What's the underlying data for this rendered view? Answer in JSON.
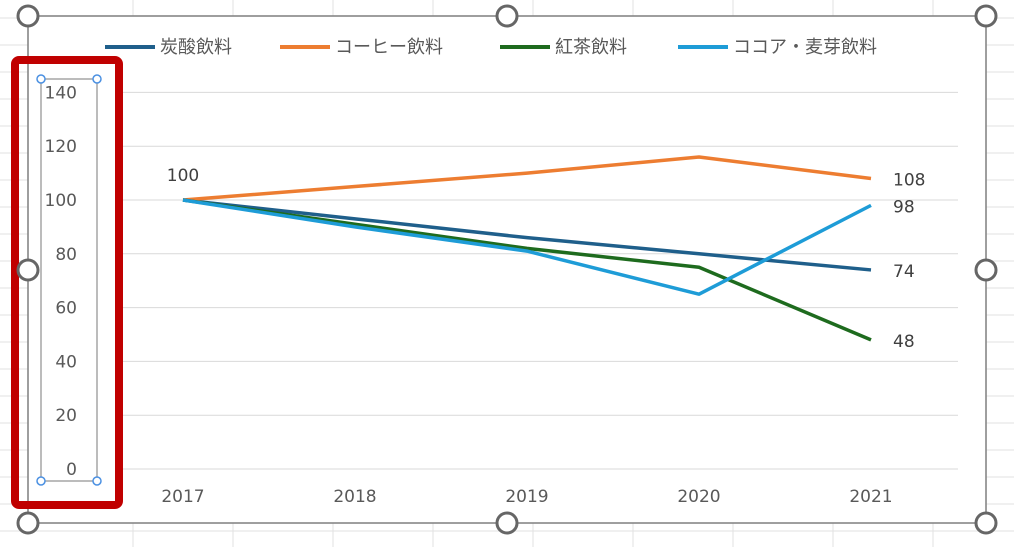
{
  "chart_data": {
    "type": "line",
    "categories": [
      "2017",
      "2018",
      "2019",
      "2020",
      "2021"
    ],
    "series": [
      {
        "name": "炭酸飲料",
        "color": "#1f5f8b",
        "values": [
          100,
          93,
          86,
          80,
          74
        ]
      },
      {
        "name": "コーヒー飲料",
        "color": "#ed7d31",
        "values": [
          100,
          105,
          110,
          116,
          108
        ]
      },
      {
        "name": "紅茶飲料",
        "color": "#1e6b1e",
        "values": [
          100,
          91,
          82,
          75,
          48
        ]
      },
      {
        "name": "ココア・麦芽飲料",
        "color": "#1e9cd7",
        "values": [
          100,
          90,
          81,
          65,
          98
        ]
      }
    ],
    "y_ticks": [
      "0",
      "20",
      "40",
      "60",
      "80",
      "100",
      "120",
      "140"
    ],
    "ylim": [
      0,
      140
    ],
    "grid": true,
    "legend_position": "top",
    "data_labels": [
      {
        "series": 0,
        "index": 0,
        "text": "100"
      },
      {
        "series": 1,
        "index": 4,
        "text": "108"
      },
      {
        "series": 3,
        "index": 4,
        "text": "98"
      },
      {
        "series": 0,
        "index": 4,
        "text": "74"
      },
      {
        "series": 2,
        "index": 4,
        "text": "48"
      }
    ]
  },
  "selection": {
    "highlight_color": "#c00000",
    "chart_border_color": "#7f7f7f"
  }
}
